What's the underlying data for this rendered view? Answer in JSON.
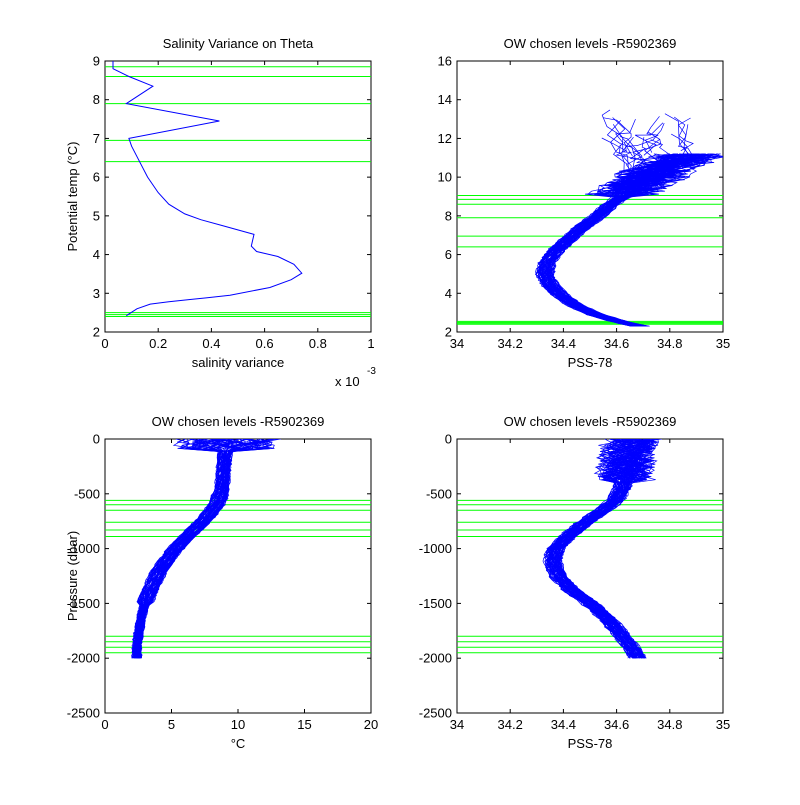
{
  "colors": {
    "profile": "#0000ff",
    "level": "#00ff00",
    "axis": "#000000",
    "background": "#ffffff"
  },
  "chart_data": [
    {
      "type": "line",
      "title": "Salinity Variance on Theta",
      "xlabel": "salinity variance",
      "xexponent_label": "x 10",
      "xexponent_power": "-3",
      "ylabel": "Potential temp (°C)",
      "xlim": [
        0,
        1
      ],
      "ylim": [
        2,
        9
      ],
      "xticks": [
        0,
        0.2,
        0.4,
        0.6,
        0.8,
        1
      ],
      "xticklabels": [
        "0",
        "0.2",
        "0.4",
        "0.6",
        "0.8",
        "1"
      ],
      "yticks": [
        2,
        3,
        4,
        5,
        6,
        7,
        8,
        9
      ],
      "yticklabels": [
        "2",
        "3",
        "4",
        "5",
        "6",
        "7",
        "8",
        "9"
      ],
      "series": [
        {
          "x": [
            0.08,
            0.12,
            0.17,
            0.24,
            0.32,
            0.38,
            0.47,
            0.62,
            0.7,
            0.74,
            0.71,
            0.65,
            0.57,
            0.55,
            0.56,
            0.44,
            0.36,
            0.3,
            0.24,
            0.2,
            0.16,
            0.13,
            0.1,
            0.09,
            0.43,
            0.08,
            0.18,
            0.09,
            0.03,
            0.03
          ],
          "y": [
            2.42,
            2.6,
            2.72,
            2.78,
            2.84,
            2.88,
            2.95,
            3.15,
            3.35,
            3.52,
            3.75,
            3.95,
            4.08,
            4.22,
            4.52,
            4.75,
            4.9,
            5.05,
            5.3,
            5.6,
            6.0,
            6.4,
            6.8,
            7.0,
            7.45,
            7.9,
            8.35,
            8.6,
            8.8,
            9.0
          ]
        }
      ],
      "levels": [
        2.4,
        2.45,
        2.5,
        6.4,
        6.95,
        7.9,
        8.6,
        8.85
      ]
    },
    {
      "type": "line",
      "title": "OW chosen levels -R5902369",
      "xlabel": "PSS-78",
      "ylabel": "",
      "xlim": [
        34,
        35
      ],
      "ylim": [
        2,
        16
      ],
      "xticks": [
        34,
        34.2,
        34.4,
        34.6,
        34.8,
        35
      ],
      "xticklabels": [
        "34",
        "34.2",
        "34.4",
        "34.6",
        "34.8",
        "35"
      ],
      "yticks": [
        2,
        4,
        6,
        8,
        10,
        12,
        14,
        16
      ],
      "yticklabels": [
        "2",
        "4",
        "6",
        "8",
        "10",
        "12",
        "14",
        "16"
      ],
      "mean_profile": {
        "x": [
          34.72,
          34.62,
          34.52,
          34.44,
          34.39,
          34.35,
          34.33,
          34.34,
          34.37,
          34.42,
          34.47,
          34.53,
          34.57,
          34.62,
          34.66,
          34.72,
          34.78,
          34.85,
          34.88
        ],
        "y": [
          2.2,
          2.5,
          2.9,
          3.4,
          3.9,
          4.4,
          5.0,
          5.6,
          6.2,
          6.8,
          7.4,
          8.0,
          8.5,
          9.0,
          9.5,
          10.0,
          10.5,
          11.0,
          11.3
        ]
      },
      "levels": [
        2.4,
        2.45,
        2.5,
        2.55,
        6.4,
        6.95,
        7.9,
        8.6,
        8.85,
        9.05
      ]
    },
    {
      "type": "line",
      "title": "OW chosen levels -R5902369",
      "xlabel": "°C",
      "ylabel": "Pressure (dbar)",
      "xlim": [
        0,
        20
      ],
      "ylim": [
        -2500,
        0
      ],
      "xticks": [
        0,
        5,
        10,
        15,
        20
      ],
      "xticklabels": [
        "0",
        "5",
        "10",
        "15",
        "20"
      ],
      "yticks": [
        -2500,
        -2000,
        -1500,
        -1000,
        -500,
        0
      ],
      "yticklabels": [
        "-2500",
        "-2000",
        "-1500",
        "-1000",
        "-500",
        "0"
      ],
      "mean_profile": {
        "x": [
          9.3,
          9.0,
          8.9,
          8.8,
          8.4,
          7.6,
          6.6,
          5.6,
          4.8,
          4.1,
          3.5,
          3.0,
          2.7,
          2.5,
          2.4,
          2.4
        ],
        "y": [
          0,
          -150,
          -300,
          -450,
          -600,
          -720,
          -840,
          -960,
          -1080,
          -1200,
          -1350,
          -1500,
          -1650,
          -1800,
          -1900,
          -2000
        ]
      },
      "levels": [
        -560,
        -600,
        -650,
        -760,
        -830,
        -890,
        -1800,
        -1850,
        -1900,
        -1950
      ]
    },
    {
      "type": "line",
      "title": "OW chosen levels -R5902369",
      "xlabel": "PSS-78",
      "ylabel": "",
      "xlim": [
        34,
        35
      ],
      "ylim": [
        -2500,
        0
      ],
      "xticks": [
        34,
        34.2,
        34.4,
        34.6,
        34.8,
        35
      ],
      "xticklabels": [
        "34",
        "34.2",
        "34.4",
        "34.6",
        "34.8",
        "35"
      ],
      "yticks": [
        -2500,
        -2000,
        -1500,
        -1000,
        -500,
        0
      ],
      "yticklabels": [
        "-2500",
        "-2000",
        "-1500",
        "-1000",
        "-500",
        "0"
      ],
      "mean_profile": {
        "x": [
          34.66,
          34.64,
          34.63,
          34.62,
          34.6,
          34.55,
          34.48,
          34.42,
          34.37,
          34.36,
          34.38,
          34.43,
          34.5,
          34.57,
          34.62,
          34.66,
          34.68
        ],
        "y": [
          0,
          -150,
          -300,
          -450,
          -550,
          -650,
          -760,
          -880,
          -1000,
          -1120,
          -1250,
          -1380,
          -1500,
          -1650,
          -1800,
          -1920,
          -2000
        ]
      },
      "levels": [
        -560,
        -600,
        -650,
        -760,
        -830,
        -890,
        -1800,
        -1850,
        -1900,
        -1950
      ]
    }
  ]
}
